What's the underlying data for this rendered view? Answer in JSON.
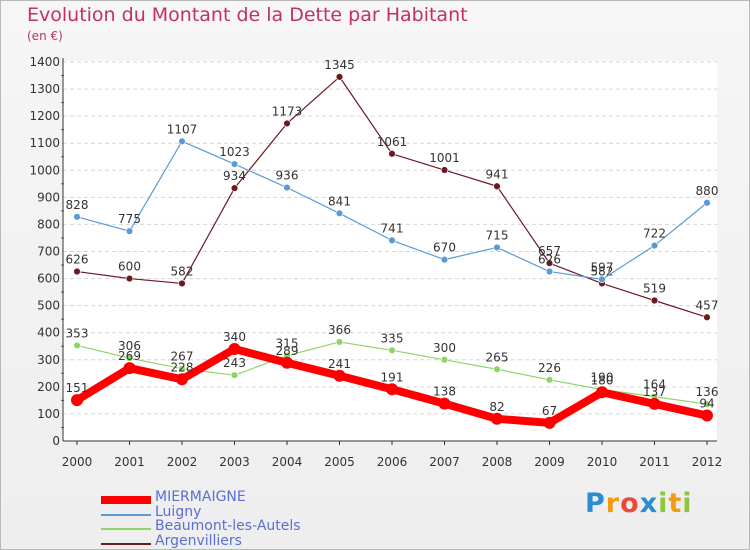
{
  "title": "Evolution du Montant de la Dette par Habitant",
  "unit": "(en €)",
  "logo": {
    "text": "Proxiti",
    "letters": [
      "P",
      "r",
      "o",
      "x",
      "i",
      "t",
      "i"
    ],
    "colors": [
      "#2b8cd6",
      "#f39c12",
      "#e74c3c",
      "#2b8cd6",
      "#8cc63f",
      "#f39c12",
      "#8cc63f"
    ]
  },
  "chart_data": {
    "type": "line",
    "x": [
      "2000",
      "2001",
      "2002",
      "2003",
      "2004",
      "2005",
      "2006",
      "2007",
      "2008",
      "2009",
      "2010",
      "2011",
      "2012"
    ],
    "ylim": [
      0,
      1400
    ],
    "yticks": [
      "0",
      "100",
      "200",
      "300",
      "400",
      "500",
      "600",
      "700",
      "800",
      "900",
      "1000",
      "1100",
      "1200",
      "1300",
      "1400"
    ],
    "grid": "horizontal",
    "legend": "bottom-left",
    "series": [
      {
        "name": "Argenvilliers",
        "color": "#6b1a22",
        "values": [
          626,
          600,
          582,
          934,
          1173,
          1345,
          1061,
          1001,
          941,
          657,
          582,
          519,
          457
        ],
        "labels": [
          "626",
          "600",
          "582",
          "934",
          "1173",
          "1345",
          "1061",
          "1001",
          "941",
          "657",
          "582",
          "519",
          "457"
        ]
      },
      {
        "name": "Luigny",
        "color": "#5a9bd5",
        "values": [
          828,
          775,
          1107,
          1023,
          936,
          841,
          741,
          670,
          715,
          626,
          597,
          722,
          880
        ],
        "labels": [
          "828",
          "775",
          "1107",
          "1023",
          "936",
          "841",
          "741",
          "670",
          "715",
          "626",
          "597",
          "722",
          "880"
        ]
      },
      {
        "name": "Beaumont-les-Autels",
        "color": "#8fd46a",
        "values": [
          353,
          306,
          267,
          243,
          315,
          366,
          335,
          300,
          265,
          226,
          190,
          164,
          136
        ],
        "labels": [
          "353",
          "306",
          "267",
          "243",
          "315",
          "366",
          "335",
          "300",
          "265",
          "226",
          "190",
          "164",
          "136"
        ]
      },
      {
        "name": "MIERMAIGNE",
        "color": "#ff0000",
        "values": [
          151,
          269,
          228,
          340,
          289,
          241,
          191,
          138,
          82,
          67,
          180,
          137,
          94
        ],
        "labels": [
          "151",
          "269",
          "228",
          "340",
          "289",
          "241",
          "191",
          "138",
          "82",
          "67",
          "180",
          "137",
          "94"
        ]
      }
    ],
    "legend_order": [
      "MIERMAIGNE",
      "Luigny",
      "Beaumont-les-Autels",
      "Argenvilliers"
    ]
  }
}
